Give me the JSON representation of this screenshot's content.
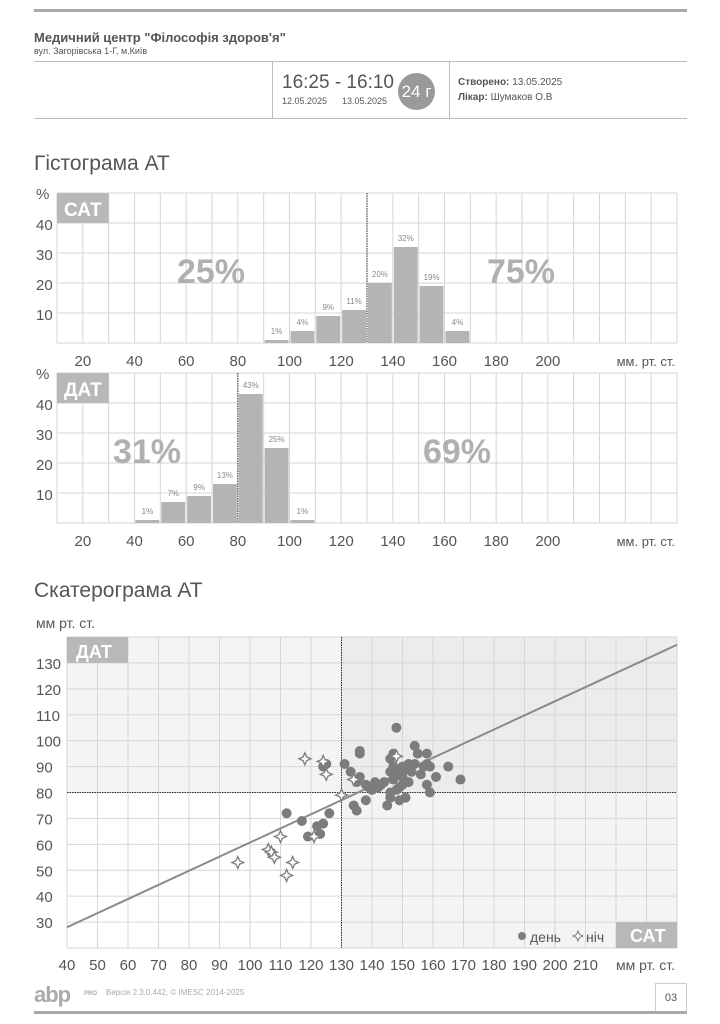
{
  "header": {
    "clinic_name": "Медичний центр \"Філософія здоров'я\"",
    "clinic_address": "вул. Загорівська 1-Г, м.Київ",
    "time_range": "16:25 - 16:10",
    "date_start": "12.05.2025",
    "date_end": "13.05.2025",
    "duration_badge": "24 г",
    "created_label": "Створено:",
    "created_value": "13.05.2025",
    "doctor_label": "Лікар:",
    "doctor_value": "Шумаков О.В"
  },
  "sections": {
    "histogram_title": "Гістограма АТ",
    "scatter_title": "Скатерограма АТ"
  },
  "footer": {
    "logo": "abp",
    "logo_suffix": "PRO",
    "version": "Версія 2.3.0.442, © IMESC 2014-2025",
    "page_number": "03"
  },
  "colors": {
    "bar": "#b4b4b4",
    "grid": "#d6d6d6",
    "label_box": "#b8b8b8",
    "big_percent": "#b0b0b0",
    "point": "#7c7c7c",
    "regression_line": "#8a8a8a",
    "shade_upper": "#f4f4f4",
    "shade_hyper": "#ececec"
  },
  "chart_data": [
    {
      "type": "bar",
      "title": "САТ",
      "ylabel": "%",
      "xlabel": "мм. рт. ст.",
      "xlim": [
        10,
        250
      ],
      "ylim": [
        0,
        50
      ],
      "x_ticks": [
        20,
        40,
        60,
        80,
        100,
        120,
        140,
        160,
        180,
        200
      ],
      "y_ticks": [
        10,
        20,
        30,
        40
      ],
      "bin_width": 10,
      "bins": [
        {
          "from": 90,
          "to": 100,
          "value": 1,
          "label": "1%"
        },
        {
          "from": 100,
          "to": 110,
          "value": 4,
          "label": "4%"
        },
        {
          "from": 110,
          "to": 120,
          "value": 9,
          "label": "9%"
        },
        {
          "from": 120,
          "to": 130,
          "value": 11,
          "label": "11%"
        },
        {
          "from": 130,
          "to": 140,
          "value": 20,
          "label": "20%"
        },
        {
          "from": 140,
          "to": 150,
          "value": 32,
          "label": "32%"
        },
        {
          "from": 150,
          "to": 160,
          "value": 19,
          "label": "19%"
        },
        {
          "from": 160,
          "to": 170,
          "value": 4,
          "label": "4%"
        }
      ],
      "threshold": 130,
      "below_threshold_pct": "25%",
      "above_threshold_pct": "75%",
      "grid": true
    },
    {
      "type": "bar",
      "title": "ДАТ",
      "ylabel": "%",
      "xlabel": "мм. рт. ст.",
      "xlim": [
        10,
        250
      ],
      "ylim": [
        0,
        50
      ],
      "x_ticks": [
        20,
        40,
        60,
        80,
        100,
        120,
        140,
        160,
        180,
        200
      ],
      "y_ticks": [
        10,
        20,
        30,
        40
      ],
      "bin_width": 10,
      "bins": [
        {
          "from": 40,
          "to": 50,
          "value": 1,
          "label": "1%"
        },
        {
          "from": 50,
          "to": 60,
          "value": 7,
          "label": "7%"
        },
        {
          "from": 60,
          "to": 70,
          "value": 9,
          "label": "9%"
        },
        {
          "from": 70,
          "to": 80,
          "value": 13,
          "label": "13%"
        },
        {
          "from": 80,
          "to": 90,
          "value": 43,
          "label": "43%"
        },
        {
          "from": 90,
          "to": 100,
          "value": 25,
          "label": "25%"
        },
        {
          "from": 100,
          "to": 110,
          "value": 1,
          "label": "1%"
        }
      ],
      "threshold": 80,
      "below_threshold_pct": "31%",
      "above_threshold_pct": "69%",
      "grid": true
    },
    {
      "type": "scatter",
      "title": "Скатерограма АТ",
      "xlabel": "мм рт. ст.",
      "ylabel": "мм рт. ст.",
      "x_axis_name": "САТ",
      "y_axis_name": "ДАТ",
      "xlim": [
        40,
        240
      ],
      "ylim": [
        20,
        140
      ],
      "x_ticks": [
        40,
        50,
        60,
        70,
        80,
        90,
        100,
        110,
        120,
        130,
        140,
        150,
        160,
        170,
        180,
        190,
        200,
        210
      ],
      "y_ticks": [
        30,
        40,
        50,
        60,
        70,
        80,
        90,
        100,
        110,
        120,
        130
      ],
      "threshold_x": 130,
      "threshold_y": 80,
      "legend": [
        {
          "label": "день",
          "marker": "circle"
        },
        {
          "label": "ніч",
          "marker": "star"
        }
      ],
      "regression_line": {
        "x1": 40,
        "y1": 28,
        "x2": 240,
        "y2": 137
      },
      "series": [
        {
          "name": "день",
          "marker": "circle",
          "points": [
            [
              112,
              72
            ],
            [
              117,
              69
            ],
            [
              119,
              63
            ],
            [
              122,
              67
            ],
            [
              123,
              64
            ],
            [
              124,
              68
            ],
            [
              126,
              72
            ],
            [
              124,
              90
            ],
            [
              125,
              91
            ],
            [
              131,
              91
            ],
            [
              133,
              88
            ],
            [
              134,
              75
            ],
            [
              135,
              73
            ],
            [
              135,
              84
            ],
            [
              136,
              86
            ],
            [
              136,
              95
            ],
            [
              136,
              96
            ],
            [
              138,
              83
            ],
            [
              138,
              77
            ],
            [
              139,
              82
            ],
            [
              140,
              81
            ],
            [
              141,
              84
            ],
            [
              142,
              82
            ],
            [
              143,
              83
            ],
            [
              144,
              84
            ],
            [
              145,
              75
            ],
            [
              146,
              78
            ],
            [
              146,
              80
            ],
            [
              146,
              88
            ],
            [
              146,
              93
            ],
            [
              147,
              85
            ],
            [
              147,
              90
            ],
            [
              147,
              95
            ],
            [
              148,
              81
            ],
            [
              148,
              87
            ],
            [
              148,
              105
            ],
            [
              149,
              77
            ],
            [
              149,
              82
            ],
            [
              149,
              88
            ],
            [
              150,
              83
            ],
            [
              150,
              86
            ],
            [
              150,
              90
            ],
            [
              151,
              78
            ],
            [
              151,
              89
            ],
            [
              152,
              84
            ],
            [
              152,
              91
            ],
            [
              153,
              88
            ],
            [
              154,
              91
            ],
            [
              154,
              98
            ],
            [
              155,
              95
            ],
            [
              156,
              87
            ],
            [
              157,
              90
            ],
            [
              158,
              83
            ],
            [
              158,
              91
            ],
            [
              158,
              95
            ],
            [
              159,
              80
            ],
            [
              159,
              90
            ],
            [
              161,
              86
            ],
            [
              165,
              90
            ],
            [
              169,
              85
            ]
          ]
        },
        {
          "name": "ніч",
          "marker": "star",
          "points": [
            [
              96,
              53
            ],
            [
              106,
              58
            ],
            [
              107,
              57
            ],
            [
              108,
              55
            ],
            [
              110,
              63
            ],
            [
              112,
              48
            ],
            [
              114,
              53
            ],
            [
              118,
              93
            ],
            [
              121,
              63
            ],
            [
              124,
              92
            ],
            [
              125,
              87
            ],
            [
              130,
              79
            ],
            [
              134,
              85
            ],
            [
              148,
              94
            ]
          ]
        }
      ]
    }
  ]
}
